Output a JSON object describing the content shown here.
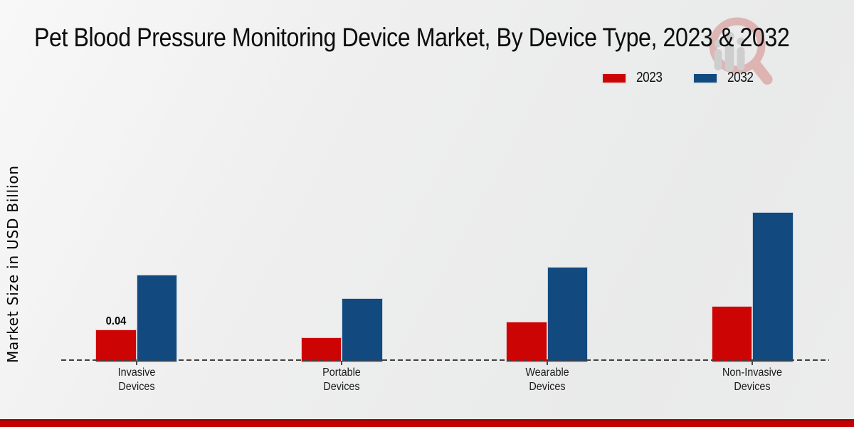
{
  "chart_data": {
    "type": "bar",
    "title": "Pet Blood Pressure Monitoring Device Market, By Device Type, 2023 & 2032",
    "ylabel": "Market Size in USD Billion",
    "xlabel": "",
    "unit": "USD Billion",
    "categories": [
      "Invasive Devices",
      "Portable Devices",
      "Wearable Devices",
      "Non-Invasive Devices"
    ],
    "category_lines": [
      [
        "Invasive",
        "Devices"
      ],
      [
        "Portable",
        "Devices"
      ],
      [
        "Wearable",
        "Devices"
      ],
      [
        "Non-Invasive",
        "Devices"
      ]
    ],
    "series": [
      {
        "name": "2023",
        "color": "#cc0404",
        "values": [
          0.04,
          0.03,
          0.05,
          0.07
        ]
      },
      {
        "name": "2032",
        "color": "#124a80",
        "values": [
          0.11,
          0.08,
          0.12,
          0.19
        ]
      }
    ],
    "bar_value_labels": [
      {
        "series": "2023",
        "category": "Invasive Devices",
        "series_index": 0,
        "category_index": 0,
        "label": "0.04"
      }
    ],
    "ylim": [
      0,
      0.2
    ],
    "grid": false,
    "legend_position": "top-right",
    "baseline_style": "dashed"
  },
  "branding": {
    "watermark_name": "market-research-logo",
    "accent_red": "#c30000",
    "accent_blue": "#124a80",
    "watermark_ring_color": "#c23b34",
    "watermark_figure_color": "#8f8f8f"
  }
}
